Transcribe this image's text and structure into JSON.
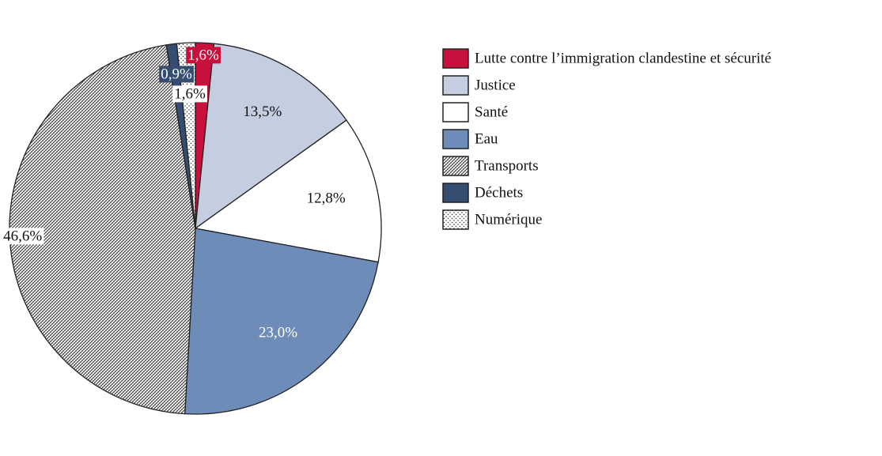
{
  "chart_data": {
    "type": "pie",
    "categories": [
      "Lutte contre l’immigration clandestine et sécurité",
      "Justice",
      "Santé",
      "Eau",
      "Transports",
      "Déchets",
      "Numérique"
    ],
    "values": [
      1.6,
      13.5,
      12.8,
      23.0,
      46.6,
      0.9,
      1.6
    ],
    "value_labels": [
      "1,6%",
      "13,5%",
      "12,8%",
      "23,0%",
      "46,6%",
      "0,9%",
      "1,6%"
    ],
    "colors": [
      "#c8103c",
      "#c5cee0",
      "#ffffff",
      "#6d8cb7",
      "#ffffff",
      "#344d70",
      "#ffffff"
    ],
    "patterns": [
      null,
      null,
      null,
      null,
      "hatch",
      null,
      "dots"
    ],
    "legend": "right"
  }
}
